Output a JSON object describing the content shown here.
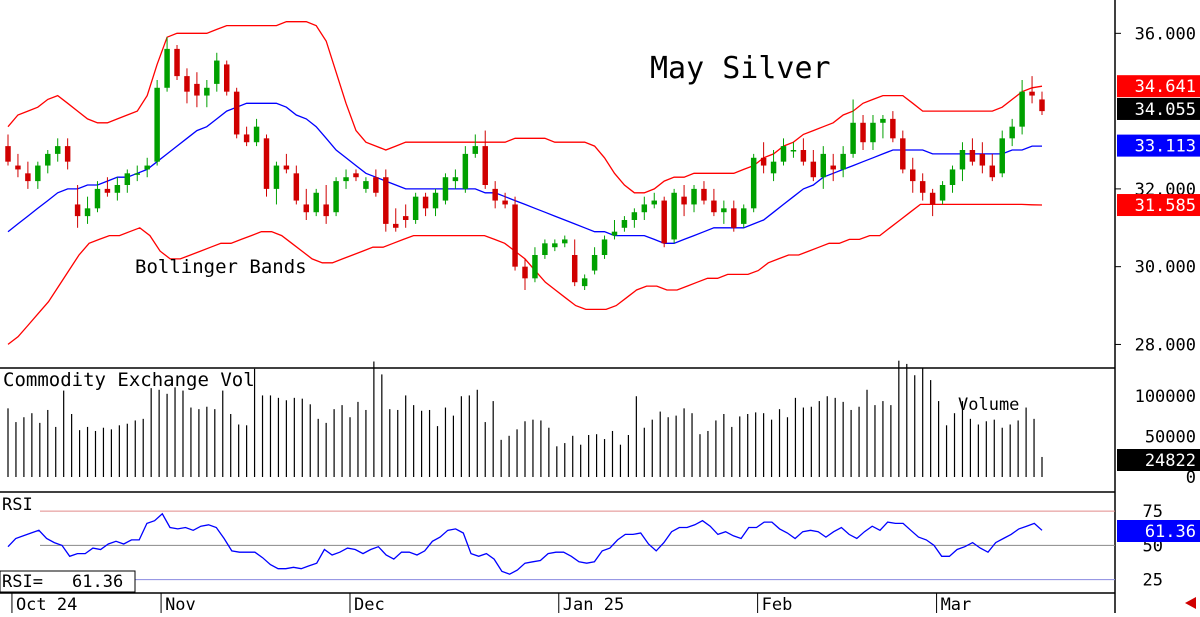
{
  "chart_data": [
    {
      "type": "candlestick",
      "title": "May Silver",
      "annotation": "Bollinger Bands",
      "ylim": [
        27.6,
        36.6
      ],
      "y_ticks": [
        "36.000",
        "32.000",
        "30.000",
        "28.000"
      ],
      "y_tick_values": [
        36,
        32,
        30,
        28
      ],
      "x_ticks": [
        "Oct 24",
        "Nov",
        "Dec",
        "Jan 25",
        "Feb",
        "Mar"
      ],
      "x_tick_index": [
        1,
        16,
        35,
        56,
        76,
        94
      ],
      "colors": {
        "up": "#00a000",
        "down": "#d00000",
        "band": "#ff0000",
        "mid": "#0000ff",
        "ma_mid": "#0000ee"
      },
      "tags": [
        {
          "text": "34.641",
          "value": 34.641,
          "color": "#ff0000"
        },
        {
          "text": "34.055",
          "value": 34.055,
          "color": "#000000"
        },
        {
          "text": "33.113",
          "value": 33.113,
          "color": "#0000ff"
        },
        {
          "text": "31.585",
          "value": 31.585,
          "color": "#ff0000"
        }
      ],
      "ohlc": [
        [
          33.1,
          33.4,
          32.6,
          32.7
        ],
        [
          32.6,
          32.9,
          32.3,
          32.5
        ],
        [
          32.4,
          32.7,
          32.0,
          32.2
        ],
        [
          32.2,
          32.7,
          32.0,
          32.6
        ],
        [
          32.6,
          33.0,
          32.4,
          32.9
        ],
        [
          32.9,
          33.3,
          32.7,
          33.1
        ],
        [
          33.1,
          33.3,
          32.5,
          32.7
        ],
        [
          31.6,
          32.1,
          31.0,
          31.3
        ],
        [
          31.3,
          31.8,
          31.1,
          31.5
        ],
        [
          31.5,
          32.2,
          31.4,
          32.0
        ],
        [
          32.0,
          32.3,
          31.8,
          31.9
        ],
        [
          31.9,
          32.3,
          31.7,
          32.1
        ],
        [
          32.1,
          32.5,
          31.9,
          32.4
        ],
        [
          32.4,
          32.6,
          32.2,
          32.4
        ],
        [
          32.5,
          32.8,
          32.3,
          32.6
        ],
        [
          32.7,
          34.8,
          32.6,
          34.6
        ],
        [
          34.6,
          35.9,
          34.5,
          35.6
        ],
        [
          35.6,
          35.7,
          34.8,
          34.9
        ],
        [
          34.9,
          35.1,
          34.2,
          34.5
        ],
        [
          34.7,
          35.0,
          34.1,
          34.4
        ],
        [
          34.4,
          34.8,
          34.1,
          34.6
        ],
        [
          34.7,
          35.5,
          34.5,
          35.3
        ],
        [
          35.2,
          35.3,
          34.4,
          34.5
        ],
        [
          34.5,
          34.6,
          33.3,
          33.4
        ],
        [
          33.4,
          33.6,
          33.1,
          33.2
        ],
        [
          33.2,
          33.8,
          33.1,
          33.6
        ],
        [
          33.3,
          33.4,
          31.8,
          32.0
        ],
        [
          32.0,
          32.7,
          31.6,
          32.6
        ],
        [
          32.6,
          32.9,
          32.4,
          32.5
        ],
        [
          32.4,
          32.6,
          31.6,
          31.7
        ],
        [
          31.6,
          32.0,
          31.2,
          31.4
        ],
        [
          31.4,
          32.0,
          31.3,
          31.9
        ],
        [
          31.6,
          32.1,
          31.1,
          31.3
        ],
        [
          31.4,
          32.3,
          31.3,
          32.2
        ],
        [
          32.2,
          32.5,
          32.0,
          32.3
        ],
        [
          32.4,
          32.5,
          32.2,
          32.3
        ],
        [
          32.0,
          32.3,
          31.9,
          32.2
        ],
        [
          32.3,
          32.5,
          31.8,
          31.9
        ],
        [
          32.3,
          32.5,
          30.9,
          31.1
        ],
        [
          31.1,
          31.5,
          30.9,
          31.0
        ],
        [
          31.3,
          31.6,
          31.0,
          31.2
        ],
        [
          31.2,
          31.9,
          31.1,
          31.8
        ],
        [
          31.8,
          31.9,
          31.3,
          31.5
        ],
        [
          31.5,
          32.0,
          31.3,
          31.9
        ],
        [
          31.7,
          32.4,
          31.6,
          32.3
        ],
        [
          32.2,
          32.5,
          32.0,
          32.3
        ],
        [
          32.0,
          33.1,
          31.9,
          32.9
        ],
        [
          32.9,
          33.4,
          32.8,
          33.1
        ],
        [
          33.1,
          33.5,
          32.0,
          32.1
        ],
        [
          32.0,
          32.2,
          31.5,
          31.7
        ],
        [
          31.7,
          31.9,
          31.5,
          31.6
        ],
        [
          31.6,
          31.8,
          29.9,
          30.0
        ],
        [
          30.0,
          30.2,
          29.4,
          29.7
        ],
        [
          29.7,
          30.5,
          29.6,
          30.3
        ],
        [
          30.3,
          30.7,
          30.2,
          30.6
        ],
        [
          30.5,
          30.7,
          30.4,
          30.6
        ],
        [
          30.6,
          30.8,
          30.5,
          30.7
        ],
        [
          30.3,
          30.7,
          29.5,
          29.6
        ],
        [
          29.5,
          29.8,
          29.4,
          29.7
        ],
        [
          29.9,
          30.5,
          29.8,
          30.3
        ],
        [
          30.3,
          30.8,
          30.2,
          30.7
        ],
        [
          30.8,
          31.2,
          30.7,
          30.9
        ],
        [
          31.0,
          31.3,
          30.9,
          31.2
        ],
        [
          31.2,
          31.5,
          31.0,
          31.4
        ],
        [
          31.4,
          31.8,
          31.2,
          31.6
        ],
        [
          31.6,
          31.9,
          31.5,
          31.7
        ],
        [
          31.7,
          31.8,
          30.5,
          30.6
        ],
        [
          30.7,
          32.0,
          30.6,
          31.9
        ],
        [
          31.8,
          32.1,
          31.3,
          31.6
        ],
        [
          31.6,
          32.1,
          31.4,
          32.0
        ],
        [
          32.0,
          32.2,
          31.6,
          31.7
        ],
        [
          31.7,
          32.0,
          31.3,
          31.4
        ],
        [
          31.4,
          31.7,
          31.1,
          31.5
        ],
        [
          31.5,
          31.7,
          30.9,
          31.0
        ],
        [
          31.1,
          31.6,
          31.0,
          31.5
        ],
        [
          31.5,
          32.9,
          31.4,
          32.8
        ],
        [
          32.8,
          33.2,
          32.4,
          32.6
        ],
        [
          32.4,
          33.0,
          32.2,
          32.7
        ],
        [
          32.7,
          33.3,
          32.6,
          33.1
        ],
        [
          33.0,
          33.2,
          32.8,
          33.0
        ],
        [
          33.0,
          33.3,
          32.6,
          32.7
        ],
        [
          32.7,
          33.0,
          32.2,
          32.3
        ],
        [
          32.3,
          33.1,
          32.0,
          32.9
        ],
        [
          32.6,
          32.9,
          32.2,
          32.5
        ],
        [
          32.5,
          33.1,
          32.3,
          32.9
        ],
        [
          32.9,
          34.3,
          32.8,
          33.7
        ],
        [
          33.7,
          33.9,
          33.0,
          33.2
        ],
        [
          33.2,
          33.9,
          33.0,
          33.7
        ],
        [
          33.7,
          33.9,
          33.3,
          33.8
        ],
        [
          33.8,
          34.0,
          33.2,
          33.3
        ],
        [
          33.3,
          33.5,
          32.4,
          32.5
        ],
        [
          32.5,
          32.8,
          31.9,
          32.2
        ],
        [
          32.2,
          32.4,
          31.7,
          31.9
        ],
        [
          31.9,
          32.0,
          31.3,
          31.6
        ],
        [
          31.7,
          32.2,
          31.6,
          32.1
        ],
        [
          32.1,
          32.6,
          31.9,
          32.5
        ],
        [
          32.5,
          33.2,
          32.2,
          33.0
        ],
        [
          33.0,
          33.3,
          32.6,
          32.7
        ],
        [
          32.9,
          33.2,
          32.4,
          32.6
        ],
        [
          32.6,
          32.9,
          32.2,
          32.3
        ],
        [
          32.4,
          33.5,
          32.3,
          33.3
        ],
        [
          33.3,
          33.8,
          33.1,
          33.6
        ],
        [
          33.6,
          34.8,
          33.4,
          34.5
        ],
        [
          34.5,
          34.9,
          34.2,
          34.4
        ],
        [
          34.3,
          34.5,
          33.9,
          34.0
        ]
      ],
      "upper_band": [
        33.6,
        33.9,
        34.0,
        34.1,
        34.3,
        34.4,
        34.2,
        34.0,
        33.8,
        33.7,
        33.7,
        33.8,
        33.9,
        34.0,
        34.4,
        35.2,
        35.9,
        36.0,
        36.0,
        36.0,
        36.0,
        36.1,
        36.2,
        36.2,
        36.2,
        36.2,
        36.2,
        36.2,
        36.3,
        36.3,
        36.3,
        36.2,
        35.8,
        35.0,
        34.2,
        33.5,
        33.2,
        33.1,
        33.0,
        33.1,
        33.2,
        33.2,
        33.2,
        33.2,
        33.2,
        33.2,
        33.2,
        33.2,
        33.2,
        33.2,
        33.2,
        33.3,
        33.3,
        33.3,
        33.3,
        33.2,
        33.2,
        33.2,
        33.2,
        33.1,
        32.8,
        32.4,
        32.1,
        31.9,
        31.9,
        32.0,
        32.2,
        32.3,
        32.3,
        32.4,
        32.4,
        32.4,
        32.4,
        32.4,
        32.5,
        32.6,
        32.8,
        32.9,
        33.1,
        33.2,
        33.4,
        33.5,
        33.6,
        33.7,
        33.9,
        34.0,
        34.2,
        34.3,
        34.4,
        34.4,
        34.4,
        34.2,
        34.0,
        34.0,
        34.0,
        34.0,
        34.0,
        34.0,
        34.0,
        34.0,
        34.1,
        34.3,
        34.5,
        34.6,
        34.64
      ],
      "middle_band": [
        30.9,
        31.1,
        31.3,
        31.5,
        31.7,
        31.9,
        32.0,
        32.0,
        32.1,
        32.1,
        32.2,
        32.3,
        32.3,
        32.4,
        32.5,
        32.7,
        32.9,
        33.1,
        33.3,
        33.5,
        33.6,
        33.8,
        34.0,
        34.1,
        34.2,
        34.2,
        34.2,
        34.2,
        34.1,
        33.9,
        33.8,
        33.6,
        33.3,
        33.0,
        32.8,
        32.6,
        32.4,
        32.3,
        32.2,
        32.1,
        32.0,
        32.0,
        32.0,
        32.0,
        32.0,
        32.0,
        32.0,
        32.0,
        31.9,
        31.9,
        31.8,
        31.7,
        31.6,
        31.5,
        31.4,
        31.3,
        31.2,
        31.1,
        31.0,
        30.9,
        30.9,
        30.8,
        30.8,
        30.8,
        30.8,
        30.7,
        30.6,
        30.6,
        30.7,
        30.8,
        30.9,
        31.0,
        31.0,
        31.0,
        31.0,
        31.1,
        31.2,
        31.4,
        31.6,
        31.8,
        32.0,
        32.1,
        32.3,
        32.4,
        32.5,
        32.6,
        32.7,
        32.8,
        32.9,
        33.0,
        33.0,
        33.0,
        33.0,
        32.9,
        32.9,
        32.9,
        32.9,
        32.9,
        32.9,
        32.9,
        32.9,
        33.0,
        33.0,
        33.1,
        33.1
      ],
      "lower_band": [
        28.0,
        28.2,
        28.5,
        28.8,
        29.1,
        29.5,
        29.9,
        30.3,
        30.6,
        30.7,
        30.8,
        30.8,
        30.9,
        31.0,
        30.8,
        30.4,
        30.2,
        30.2,
        30.3,
        30.4,
        30.5,
        30.6,
        30.6,
        30.7,
        30.8,
        30.9,
        30.9,
        30.8,
        30.6,
        30.4,
        30.2,
        30.1,
        30.1,
        30.2,
        30.3,
        30.4,
        30.5,
        30.5,
        30.6,
        30.7,
        30.8,
        30.8,
        30.8,
        30.8,
        30.8,
        30.8,
        30.8,
        30.8,
        30.7,
        30.6,
        30.4,
        30.2,
        29.9,
        29.6,
        29.4,
        29.2,
        29.0,
        28.9,
        28.9,
        28.9,
        29.0,
        29.2,
        29.4,
        29.5,
        29.5,
        29.4,
        29.4,
        29.5,
        29.6,
        29.7,
        29.7,
        29.8,
        29.8,
        29.8,
        29.9,
        30.1,
        30.2,
        30.3,
        30.3,
        30.4,
        30.5,
        30.6,
        30.6,
        30.7,
        30.7,
        30.8,
        30.8,
        31.0,
        31.2,
        31.4,
        31.6,
        31.6,
        31.6,
        31.6,
        31.6,
        31.6,
        31.6,
        31.6,
        31.6,
        31.6,
        31.6,
        31.59,
        31.585
      ]
    },
    {
      "type": "bar",
      "title": "Commodity Exchange Vol",
      "series_name": "Volume",
      "ylim": [
        0,
        130000
      ],
      "y_ticks": [
        "100000",
        "50000",
        "0"
      ],
      "y_tick_values": [
        100000,
        50000,
        0
      ],
      "current_label": "24822",
      "values": [
        85000,
        68000,
        74000,
        79000,
        67000,
        83000,
        62000,
        107000,
        78000,
        58000,
        62000,
        57000,
        61000,
        59000,
        64000,
        66000,
        70000,
        72000,
        110000,
        108000,
        103000,
        111000,
        107000,
        86000,
        84000,
        87000,
        84000,
        107000,
        78000,
        65000,
        64000,
        134000,
        101000,
        101000,
        98000,
        95000,
        98000,
        97000,
        90000,
        72000,
        67000,
        84000,
        89000,
        74000,
        93000,
        83000,
        143000,
        127000,
        84000,
        83000,
        101000,
        89000,
        82000,
        83000,
        63000,
        86000,
        76000,
        100000,
        101000,
        108000,
        68000,
        94000,
        46000,
        51000,
        59000,
        69000,
        71000,
        70000,
        61000,
        38000,
        42000,
        51000,
        40000,
        52000,
        53000,
        47000,
        57000,
        40000,
        52000,
        100000,
        61000,
        71000,
        81000,
        74000,
        76000,
        85000,
        79000,
        53000,
        57000,
        70000,
        78000,
        62000,
        75000,
        78000,
        80000,
        79000,
        71000,
        84000,
        74000,
        98000,
        86000,
        87000,
        94000,
        100000,
        98000,
        93000,
        83000,
        87000,
        108000,
        89000,
        94000,
        89000,
        144000,
        140000,
        126000,
        135000,
        120000,
        94000,
        64000,
        79000,
        94000,
        72000,
        65000,
        69000,
        71000,
        61000,
        65000,
        70000,
        86000,
        72000,
        24822
      ]
    },
    {
      "type": "line",
      "title": "RSI",
      "readout_label": "RSI=",
      "readout_value": "61.36",
      "current_label": "61.36",
      "ylim": [
        16,
        86
      ],
      "y_ticks": [
        "75",
        "50",
        "25"
      ],
      "y_tick_values": [
        75,
        50,
        25
      ],
      "values": [
        49,
        55,
        57,
        59,
        61,
        55,
        52,
        50,
        42,
        44,
        44,
        48,
        47,
        51,
        53,
        51,
        54,
        54,
        66,
        68,
        73,
        63,
        62,
        63,
        61,
        64,
        65,
        63,
        55,
        46,
        45,
        45,
        45,
        41,
        36,
        33,
        33,
        34,
        33,
        35,
        37,
        47,
        43,
        45,
        48,
        47,
        44,
        47,
        49,
        43,
        40,
        45,
        45,
        43,
        46,
        53,
        56,
        61,
        62,
        59,
        44,
        42,
        44,
        40,
        31,
        29,
        32,
        37,
        38,
        39,
        44,
        45,
        45,
        42,
        38,
        37,
        38,
        46,
        48,
        54,
        58,
        58,
        59,
        51,
        46,
        52,
        60,
        63,
        63,
        65,
        68,
        64,
        58,
        60,
        57,
        55,
        63,
        63,
        67,
        67,
        62,
        59,
        55,
        60,
        61,
        60,
        56,
        60,
        63,
        58,
        55,
        60,
        64,
        61,
        67,
        66,
        66,
        61,
        56,
        54,
        50,
        42,
        42,
        47,
        49,
        52,
        48,
        45,
        52,
        55,
        58,
        62,
        64,
        66,
        61
      ]
    }
  ]
}
